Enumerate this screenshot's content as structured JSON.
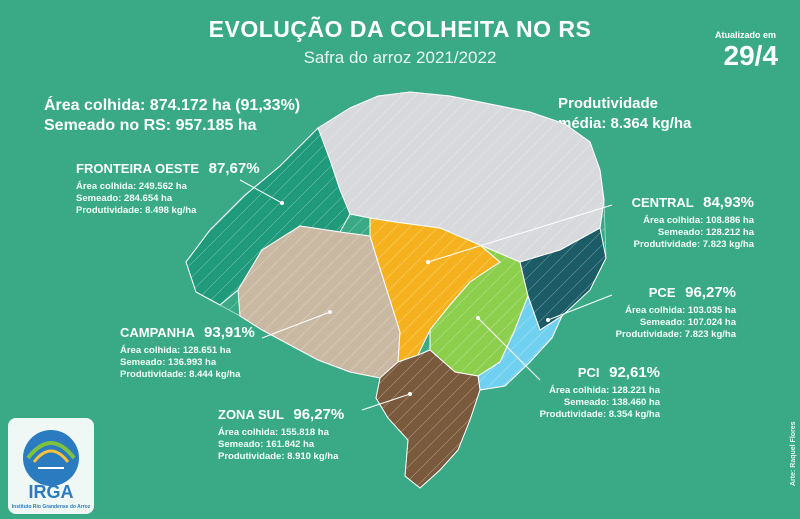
{
  "header": {
    "title": "EVOLUÇÃO DA COLHEITA NO RS",
    "subtitle": "Safra do arroz 2021/2022",
    "updated_label": "Atualizado em",
    "updated_date": "29/4"
  },
  "summary": {
    "area_colhida": "Área colhida: 874.172 ha (91,33%)",
    "semeado": "Semeado no RS: 957.185 ha",
    "produtividade_label": "Produtividade",
    "produtividade_value": "média: 8.364 kg/ha"
  },
  "regions": {
    "fronteira_oeste": {
      "name": "FRONTEIRA OESTE",
      "pct": "87,67%",
      "area": "Área colhida: 249.562 ha",
      "semeado": "Semeado: 284.654 ha",
      "produtividade": "Produtividade: 8.498 kg/ha",
      "color": "#1f9a7a"
    },
    "central": {
      "name": "CENTRAL",
      "pct": "84,93%",
      "area": "Área colhida: 108.886 ha",
      "semeado": "Semeado: 128.212 ha",
      "produtividade": "Produtividade: 7.823 kg/ha",
      "color": "#f6b21e"
    },
    "pce": {
      "name": "PCE",
      "pct": "96,27%",
      "area": "Área colhida: 103.035 ha",
      "semeado": "Semeado: 107.024 ha",
      "produtividade": "Produtividade: 7.823 kg/ha",
      "color": "#8ccf4d"
    },
    "campanha": {
      "name": "CAMPANHA",
      "pct": "93,91%",
      "area": "Área colhida: 128.651 ha",
      "semeado": "Semeado: 136.993 ha",
      "produtividade": "Produtividade: 8.444 kg/ha",
      "color": "#c9b8a2"
    },
    "pci": {
      "name": "PCI",
      "pct": "92,61%",
      "area": "Área colhida: 128.221 ha",
      "semeado": "Semeado: 138.460 ha",
      "produtividade": "Produtividade: 8.354 kg/ha",
      "color": "#6fd0ef"
    },
    "zona_sul": {
      "name": "ZONA SUL",
      "pct": "96,27%",
      "area": "Área colhida: 155.818 ha",
      "semeado": "Semeado: 161.842 ha",
      "produtividade": "Produtividade: 8.910 kg/ha",
      "color": "#7a5a3c"
    }
  },
  "map_colors": {
    "north": "#d7d9dc",
    "litoral": "#1b5c66"
  },
  "logo": {
    "name": "IRGA",
    "subtitle": "Instituto Rio Grandense do Arroz"
  },
  "credit": "Arte: Raquel Flores"
}
